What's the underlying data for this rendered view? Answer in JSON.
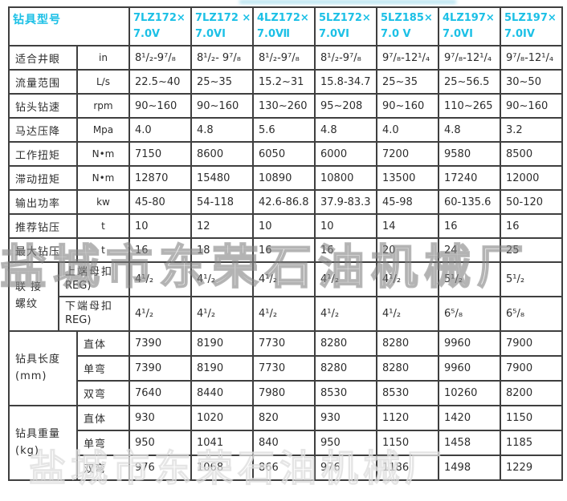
{
  "page": {
    "background": "#ffffff"
  },
  "accent_color": "#1cc0e6",
  "watermark": {
    "text": "盐城市东荣石油机械厂"
  },
  "table": {
    "title": "钻具型号",
    "models": [
      {
        "line1": "7LZ172×",
        "line2": "7.0V"
      },
      {
        "line1": "7LZ172 ×",
        "line2": "7.0VI"
      },
      {
        "line1": "4LZ172×",
        "line2": "7.0Ⅶ"
      },
      {
        "line1": "5LZ172×",
        "line2": "7.0VI"
      },
      {
        "line1": "5LZ185×",
        "line2": "7.0 V"
      },
      {
        "line1": "4LZ197×",
        "line2": "7.0VI"
      },
      {
        "line1": "5LZ197×",
        "line2": "7.0IV"
      }
    ],
    "spec_rows": [
      {
        "label": "适合井眼",
        "unit": "in",
        "values": [
          "8¹/₂-9⁷/₈",
          "8¹/₂- 9⁷/₈",
          "8¹/₂-9⁷/₈",
          "8¹/₂-9⁷/₈",
          "9⁷/₈-12¹/₄",
          "9⁷/₈-12¹/₄",
          "9⁷/₈-12¹/₄"
        ]
      },
      {
        "label": "流量范围",
        "unit": "L/s",
        "values": [
          "22.5~40",
          "25~35",
          "15.2~31",
          "15.8-34.7",
          "25~35",
          "25~56.5",
          "30~50"
        ]
      },
      {
        "label": "钻头钻速",
        "unit": "rpm",
        "values": [
          "90~160",
          "90~160",
          "130~260",
          "95~208",
          "90~160",
          "110~265",
          "90~160"
        ]
      },
      {
        "label": "马达压降",
        "unit": "Mpa",
        "values": [
          "4.0",
          "4.8",
          "5.6",
          "4.8",
          "4.0",
          "4.8",
          "3.2"
        ]
      },
      {
        "label": "工作扭矩",
        "unit": "N•m",
        "values": [
          "7150",
          "8600",
          "6050",
          "6000",
          "7200",
          "9580",
          "8500"
        ]
      },
      {
        "label": "滞动扭矩",
        "unit": "N•m",
        "values": [
          "12870",
          "15480",
          "10890",
          "10800",
          "13500",
          "17240",
          "12000"
        ]
      },
      {
        "label": "输出功率",
        "unit": "kw",
        "values": [
          "45-80",
          "54-118",
          "42.6-86.8",
          "37.9-83.3",
          "45-98",
          "60-135.6",
          "50-120"
        ]
      },
      {
        "label": "推荐钻压",
        "unit": "t",
        "values": [
          "10",
          "12",
          "10",
          "10",
          "14",
          "16",
          "16"
        ]
      },
      {
        "label": "最大钻压",
        "unit": "t",
        "values": [
          "16",
          "18",
          "16",
          "16",
          "20",
          "24",
          "25"
        ]
      }
    ],
    "thread_section": {
      "group_line1": "联 接",
      "group_line2": "螺纹",
      "rows": [
        {
          "label": "上端母扣",
          "label2": "REG)",
          "values": [
            "4¹/₂",
            "4¹/₂",
            "4¹/₂",
            "4¹/₂",
            "4¹/₂",
            "5¹/₂",
            "5¹/₂"
          ]
        },
        {
          "label": "下端母扣",
          "label2": "REG)",
          "values": [
            "4¹/₂",
            "4¹/₂",
            "4¹/₂",
            "4¹/₂",
            "4¹/₂",
            "6⁵/₈",
            "6⁵/₈"
          ]
        }
      ]
    },
    "length_section": {
      "group_line1": "钻具长度",
      "group_line2": "(mm)",
      "rows": [
        {
          "label": "直体",
          "values": [
            "7390",
            "8190",
            "7730",
            "8280",
            "8280",
            "9960",
            "7900"
          ]
        },
        {
          "label": "单弯",
          "values": [
            "7390",
            "8190",
            "7730",
            "8280",
            "8280",
            "9960",
            "7900"
          ]
        },
        {
          "label": "双弯",
          "values": [
            "7640",
            "8440",
            "7980",
            "8530",
            "8530",
            "10260",
            "8200"
          ]
        }
      ]
    },
    "weight_section": {
      "group_line1": "钻具重量",
      "group_line2": "(kg)",
      "rows": [
        {
          "label": "直体",
          "values": [
            "930",
            "1020",
            "820",
            "930",
            "1120",
            "1420",
            "1150"
          ]
        },
        {
          "label": "单弯",
          "values": [
            "950",
            "1041",
            "840",
            "950",
            "1150",
            "1458",
            "1185"
          ]
        },
        {
          "label": "双弯",
          "values": [
            "976",
            "1068",
            "866",
            "976",
            "1186",
            "1498",
            "1229"
          ]
        }
      ]
    }
  }
}
